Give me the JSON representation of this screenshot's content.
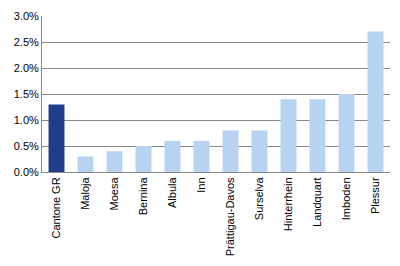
{
  "chart_data": {
    "type": "bar",
    "categories": [
      "Cantone GR",
      "Maloja",
      "Moesa",
      "Bernina",
      "Albula",
      "Inn",
      "Prättigau-Davos",
      "Surselva",
      "Hinterrhein",
      "Landquart",
      "Imboden",
      "Plessur"
    ],
    "values": [
      1.3,
      0.3,
      0.4,
      0.5,
      0.6,
      0.6,
      0.8,
      0.8,
      1.4,
      1.4,
      1.5,
      2.7
    ],
    "colors": [
      "#1f3d8a",
      "#b8d3f2",
      "#b8d3f2",
      "#b8d3f2",
      "#b8d3f2",
      "#b8d3f2",
      "#b8d3f2",
      "#b8d3f2",
      "#b8d3f2",
      "#b8d3f2",
      "#b8d3f2",
      "#b8d3f2"
    ],
    "ylim": [
      0,
      3
    ],
    "yticks": [
      {
        "value": 0,
        "label": "0.0%"
      },
      {
        "value": 0.5,
        "label": "0.5%"
      },
      {
        "value": 1,
        "label": "1.0%"
      },
      {
        "value": 1.5,
        "label": "1.5%"
      },
      {
        "value": 2,
        "label": "2.0%"
      },
      {
        "value": 2.5,
        "label": "2.5%"
      },
      {
        "value": 3,
        "label": "3.0%"
      }
    ],
    "grid": true
  }
}
